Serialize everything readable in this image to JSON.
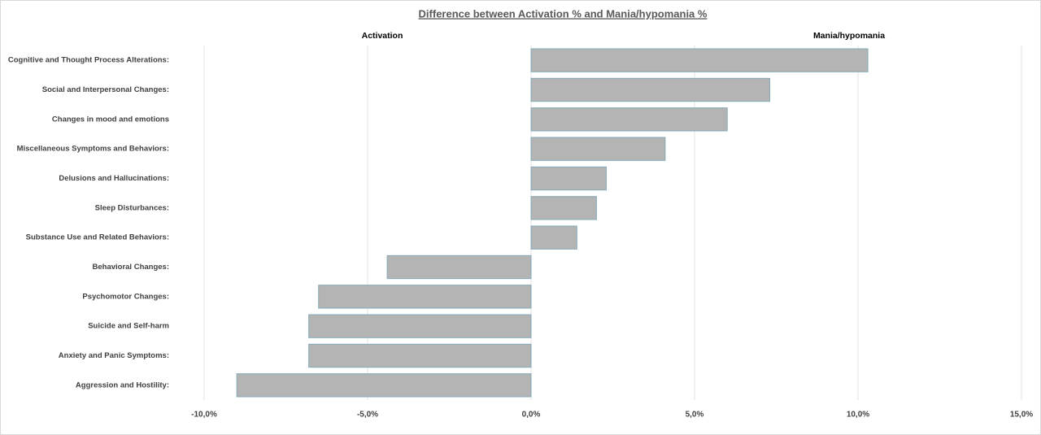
{
  "chart_data": {
    "type": "hbar",
    "title": "Difference between  Activation % and Mania/hypomania %",
    "annotations": [
      "Activation",
      "Mania/hypomania"
    ],
    "categories": [
      "Cognitive and Thought Process Alterations:",
      "Social and Interpersonal Changes:",
      "Changes in mood and emotions",
      "Miscellaneous Symptoms and Behaviors:",
      "Delusions and Hallucinations:",
      "Sleep Disturbances:",
      "Substance Use and Related Behaviors:",
      "Behavioral Changes:",
      "Psychomotor Changes:",
      "Suicide and Self-harm",
      "Anxiety and Panic Symptoms:",
      "Aggression and Hostility:"
    ],
    "values": [
      10.3,
      7.3,
      6.0,
      4.1,
      2.3,
      2.0,
      1.4,
      -4.4,
      -6.5,
      -6.8,
      -6.8,
      -9.0
    ],
    "color": "#b4b4b4",
    "xlim": [
      -10,
      15
    ],
    "xticks": [
      {
        "value": -10,
        "label": "-10,0%"
      },
      {
        "value": -5,
        "label": "-5,0%"
      },
      {
        "value": 0,
        "label": "0,0%"
      },
      {
        "value": 5,
        "label": "5,0%"
      },
      {
        "value": 10,
        "label": "10,0%"
      },
      {
        "value": 15,
        "label": "15,0%"
      }
    ],
    "grid": true
  }
}
